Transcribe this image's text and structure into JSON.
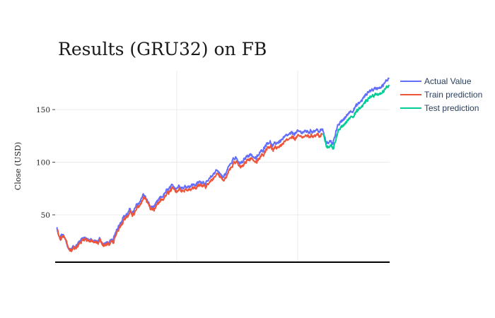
{
  "chart_data": {
    "type": "line",
    "title": "Results (GRU32) on FB",
    "xlabel": "",
    "ylabel": "Close (USD)",
    "ylim": [
      5,
      187
    ],
    "y_ticks": [
      50,
      100,
      150
    ],
    "y_tick_labels": [
      "50",
      "100",
      "150"
    ],
    "grid": true,
    "legend_position": "right",
    "n_points": 1000,
    "test_start_index": 800,
    "anchors": [
      [
        0,
        38
      ],
      [
        5,
        31
      ],
      [
        10,
        27
      ],
      [
        15,
        31
      ],
      [
        20,
        30
      ],
      [
        30,
        24
      ],
      [
        35,
        18
      ],
      [
        45,
        17
      ],
      [
        50,
        20
      ],
      [
        60,
        21
      ],
      [
        70,
        25
      ],
      [
        80,
        29
      ],
      [
        90,
        28
      ],
      [
        100,
        26
      ],
      [
        110,
        25
      ],
      [
        120,
        24
      ],
      [
        130,
        27
      ],
      [
        140,
        22
      ],
      [
        150,
        23
      ],
      [
        170,
        25
      ],
      [
        180,
        36
      ],
      [
        190,
        42
      ],
      [
        200,
        48
      ],
      [
        210,
        50
      ],
      [
        220,
        54
      ],
      [
        230,
        52
      ],
      [
        240,
        58
      ],
      [
        250,
        62
      ],
      [
        260,
        70
      ],
      [
        270,
        65
      ],
      [
        280,
        58
      ],
      [
        290,
        57
      ],
      [
        300,
        60
      ],
      [
        310,
        65
      ],
      [
        320,
        68
      ],
      [
        330,
        72
      ],
      [
        340,
        75
      ],
      [
        350,
        77
      ],
      [
        360,
        76
      ],
      [
        370,
        78
      ],
      [
        380,
        76
      ],
      [
        400,
        78
      ],
      [
        420,
        79
      ],
      [
        430,
        81
      ],
      [
        440,
        82
      ],
      [
        450,
        80
      ],
      [
        460,
        83
      ],
      [
        470,
        88
      ],
      [
        480,
        93
      ],
      [
        490,
        90
      ],
      [
        500,
        85
      ],
      [
        510,
        90
      ],
      [
        520,
        98
      ],
      [
        530,
        104
      ],
      [
        540,
        103
      ],
      [
        550,
        98
      ],
      [
        560,
        100
      ],
      [
        570,
        105
      ],
      [
        580,
        108
      ],
      [
        590,
        106
      ],
      [
        600,
        103
      ],
      [
        610,
        108
      ],
      [
        620,
        112
      ],
      [
        630,
        118
      ],
      [
        640,
        120
      ],
      [
        650,
        115
      ],
      [
        660,
        118
      ],
      [
        680,
        122
      ],
      [
        700,
        126
      ],
      [
        720,
        128
      ],
      [
        740,
        129
      ],
      [
        760,
        129
      ],
      [
        780,
        131
      ],
      [
        790,
        129
      ],
      [
        800,
        131
      ],
      [
        805,
        124
      ],
      [
        810,
        118
      ],
      [
        820,
        120
      ],
      [
        830,
        118
      ],
      [
        840,
        130
      ],
      [
        850,
        136
      ],
      [
        860,
        140
      ],
      [
        870,
        143
      ],
      [
        880,
        148
      ],
      [
        890,
        150
      ],
      [
        900,
        153
      ],
      [
        910,
        156
      ],
      [
        920,
        160
      ],
      [
        930,
        164
      ],
      [
        940,
        168
      ],
      [
        950,
        169
      ],
      [
        960,
        170
      ],
      [
        970,
        172
      ],
      [
        980,
        173
      ],
      [
        990,
        176
      ],
      [
        999,
        181
      ]
    ],
    "series": [
      {
        "name": "Actual Value",
        "color": "#636efa"
      },
      {
        "name": "Train prediction",
        "color": "#ef553b"
      },
      {
        "name": "Test prediction",
        "color": "#00cc96"
      }
    ]
  }
}
